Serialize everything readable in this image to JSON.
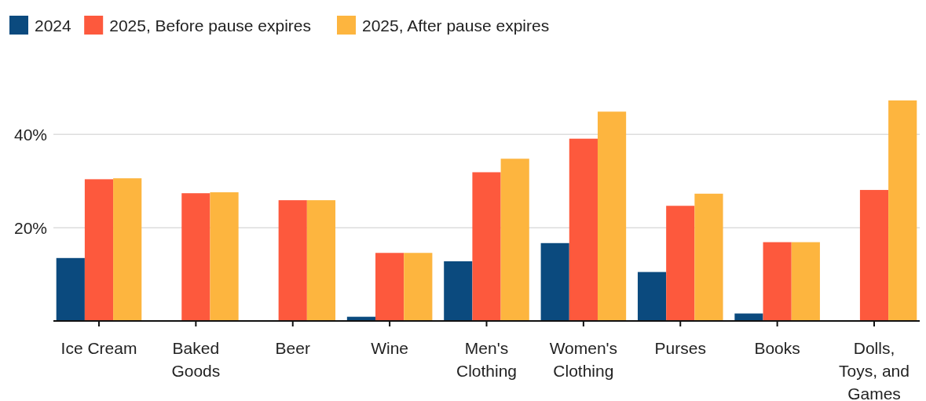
{
  "chart_data": {
    "type": "bar",
    "categories": [
      "Ice Cream",
      "Baked Goods",
      "Beer",
      "Wine",
      "Men's Clothing",
      "Women's Clothing",
      "Purses",
      "Books",
      "Dolls, Toys, and Games"
    ],
    "series": [
      {
        "name": "2024",
        "color": "#0b4a7e",
        "values": [
          13.5,
          0,
          0,
          0.9,
          12.8,
          16.7,
          10.5,
          1.6,
          0
        ]
      },
      {
        "name": "2025, Before pause expires",
        "color": "#fd593d",
        "values": [
          30.4,
          27.4,
          25.9,
          14.6,
          31.9,
          39.1,
          24.7,
          16.9,
          28.1
        ]
      },
      {
        "name": "2025, After pause expires",
        "color": "#fdb53f",
        "values": [
          30.6,
          27.6,
          25.9,
          14.6,
          34.8,
          44.9,
          27.3,
          16.9,
          47.3
        ]
      }
    ],
    "ylim": [
      0,
      47.3
    ],
    "yticks": [
      {
        "value": 20,
        "label": "20%"
      },
      {
        "value": 40,
        "label": "40%"
      }
    ],
    "grid": "y",
    "legend": "top left"
  }
}
